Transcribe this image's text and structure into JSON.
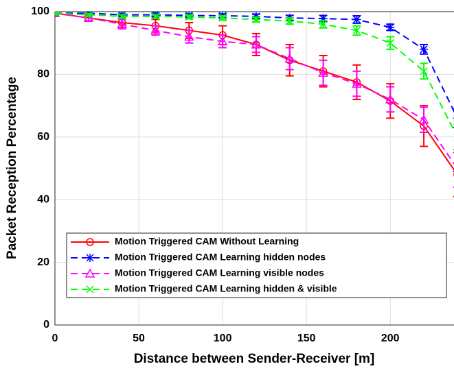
{
  "chart_data": {
    "type": "line",
    "xlabel": "Distance between Sender-Receiver [m]",
    "ylabel": "Packet Reception Percentage",
    "x": [
      0,
      20,
      40,
      60,
      80,
      100,
      120,
      140,
      160,
      180,
      200,
      220,
      240
    ],
    "series": [
      {
        "name": "Motion Triggered CAM Without Learning",
        "color": "#ff0000",
        "dash": false,
        "marker": "circle",
        "values": [
          99.5,
          98,
          96.5,
          95.5,
          94,
          92.5,
          89.5,
          84.5,
          81,
          77.5,
          71.5,
          63.5,
          48
        ],
        "errors": [
          0.5,
          1,
          1.5,
          2,
          2.5,
          3,
          3.5,
          5,
          5,
          5.5,
          5.5,
          6.5,
          7
        ]
      },
      {
        "name": "Motion Triggered CAM Learning hidden nodes",
        "color": "#0000ff",
        "dash": true,
        "marker": "asterisk",
        "values": [
          99.5,
          99.5,
          99,
          99,
          98.8,
          98.7,
          98.5,
          98,
          97.8,
          97.5,
          95,
          88,
          66
        ],
        "errors": [
          0.3,
          0.3,
          0.4,
          0.5,
          0.5,
          0.6,
          0.7,
          0.8,
          1,
          1.2,
          1,
          1.5,
          3
        ]
      },
      {
        "name": "Motion Triggered CAM Learning visible nodes",
        "color": "#ff00ff",
        "dash": true,
        "marker": "triangle",
        "values": [
          99.5,
          98,
          96,
          94,
          92,
          90.5,
          89.5,
          85,
          80.5,
          77,
          72,
          65.5,
          50
        ],
        "errors": [
          0.5,
          1,
          1.5,
          1.5,
          2,
          2,
          2.5,
          3.5,
          4,
          4,
          4,
          4,
          6
        ]
      },
      {
        "name": "Motion Triggered CAM Learning hidden & visible",
        "color": "#00ff00",
        "dash": true,
        "marker": "x",
        "values": [
          99.5,
          99,
          98.5,
          98.5,
          98.3,
          98,
          97.5,
          97,
          96,
          94,
          90,
          81,
          60
        ],
        "errors": [
          0.3,
          0.4,
          0.5,
          0.6,
          0.6,
          0.7,
          0.8,
          1,
          1.2,
          1.5,
          2,
          2.5,
          4
        ]
      }
    ],
    "xlim": [
      0,
      238
    ],
    "ylim": [
      0,
      100
    ],
    "xticks": [
      0,
      50,
      100,
      150,
      200
    ],
    "yticks": [
      0,
      20,
      40,
      60,
      80,
      100
    ],
    "grid": true,
    "legend": "lower left"
  }
}
